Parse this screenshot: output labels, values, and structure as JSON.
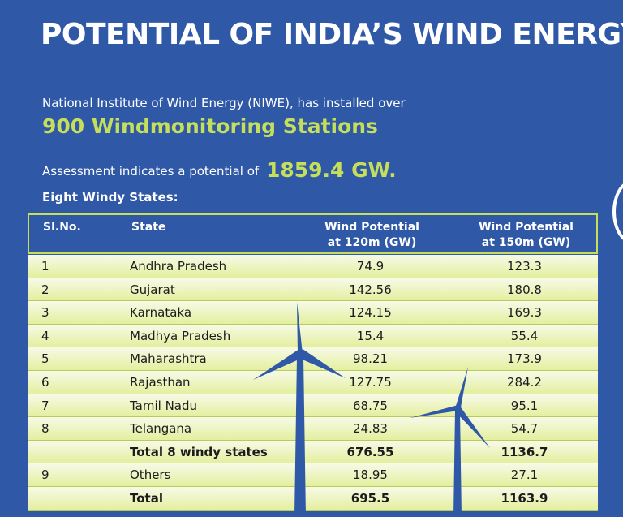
{
  "title": "POTENTIAL OF INDIA’S WIND ENERGY",
  "intro": "National Institute of Wind Energy (NIWE), has installed over",
  "stations": "900 Windmonitoring Stations",
  "assessment_text": "Assessment indicates a potential of",
  "assessment_value": "1859.4 GW.",
  "table_heading": "Eight Windy States:",
  "table": {
    "headers": [
      "Sl.No.",
      "State",
      "Wind Potential\nat 120m (GW)",
      "Wind Potential\nat 150m (GW)"
    ],
    "rows": [
      {
        "sl": "1",
        "state": "Andhra Pradesh",
        "w120": "74.9",
        "w150": "123.3"
      },
      {
        "sl": "2",
        "state": "Gujarat",
        "w120": "142.56",
        "w150": "180.8"
      },
      {
        "sl": "3",
        "state": "Karnataka",
        "w120": "124.15",
        "w150": "169.3"
      },
      {
        "sl": "4",
        "state": "Madhya Pradesh",
        "w120": "15.4",
        "w150": "55.4"
      },
      {
        "sl": "5",
        "state": "Maharashtra",
        "w120": "98.21",
        "w150": "173.9"
      },
      {
        "sl": "6",
        "state": "Rajasthan",
        "w120": "127.75",
        "w150": "284.2"
      },
      {
        "sl": "7",
        "state": "Tamil Nadu",
        "w120": "68.75",
        "w150": "95.1"
      },
      {
        "sl": "8",
        "state": "Telangana",
        "w120": "24.83",
        "w150": "54.7"
      },
      {
        "sl": "",
        "state": "Total 8 windy states",
        "w120": "676.55",
        "w150": "1136.7",
        "bold": true
      },
      {
        "sl": "9",
        "state": "Others",
        "w120": "18.95",
        "w150": "27.1"
      },
      {
        "sl": "",
        "state": "Total",
        "w120": "695.5",
        "w150": "1163.9",
        "bold": true
      }
    ]
  },
  "colors": {
    "background": "#2f58a7",
    "accent": "#c5de5b",
    "turbine": "#2f58a7"
  },
  "icons": [
    "wind-turbine-icon"
  ]
}
